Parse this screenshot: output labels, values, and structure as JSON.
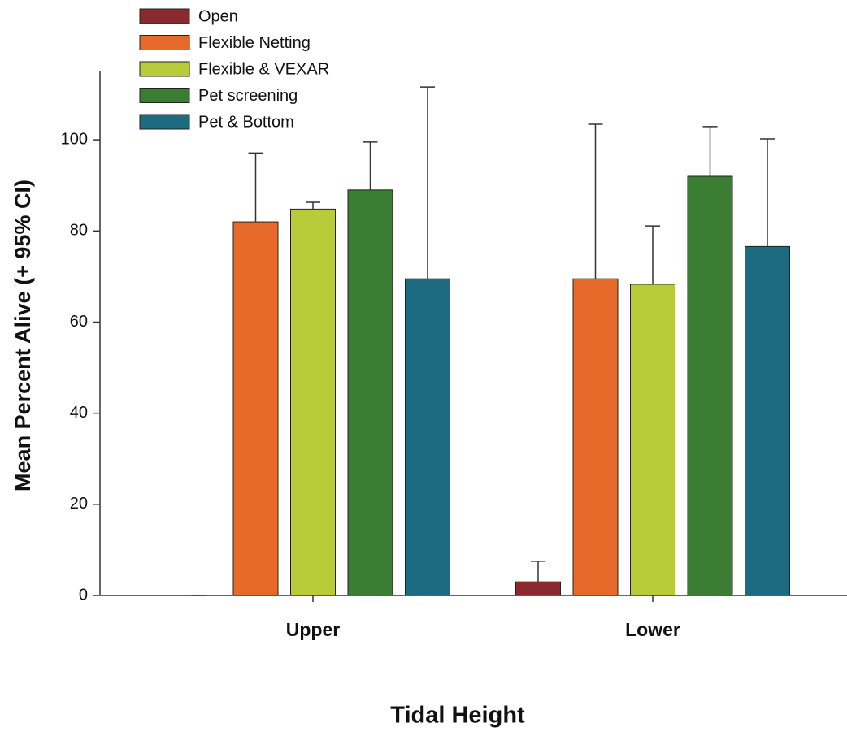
{
  "chart_data": {
    "type": "bar",
    "x_label": "Tidal Height",
    "y_label": "Mean Percent Alive (+ 95% CI)",
    "categories": [
      "Upper",
      "Lower"
    ],
    "series": [
      {
        "name": "Open",
        "color": "#8b2a2e",
        "values": [
          0,
          3.0
        ],
        "errors": [
          0,
          4.5
        ]
      },
      {
        "name": "Flexible Netting",
        "color": "#e86a2a",
        "values": [
          82.0,
          69.5
        ],
        "errors": [
          15.1,
          33.9
        ]
      },
      {
        "name": "Flexible & VEXAR",
        "color": "#b8cc3a",
        "values": [
          84.8,
          68.3
        ],
        "errors": [
          1.5,
          12.8
        ]
      },
      {
        "name": "Pet screening",
        "color": "#3b7d32",
        "values": [
          89.0,
          92.0
        ],
        "errors": [
          10.5,
          10.9
        ]
      },
      {
        "name": "Pet & Bottom",
        "color": "#1d6b80",
        "values": [
          69.5,
          76.6
        ],
        "errors": [
          42.1,
          23.6
        ]
      }
    ],
    "ylim": [
      0,
      115
    ],
    "yticks": [
      0,
      20,
      40,
      60,
      80,
      100
    ],
    "legend": "upper left"
  }
}
